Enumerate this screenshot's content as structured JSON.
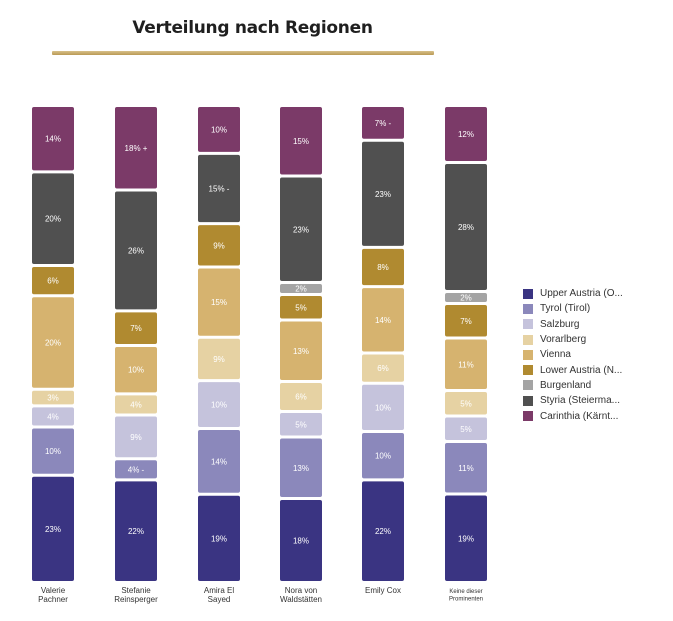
{
  "title": "Verteilung nach Regionen",
  "chart_data": {
    "type": "bar",
    "stacked": true,
    "title": "Verteilung nach Regionen",
    "xlabel": "",
    "ylabel": "",
    "legend_position": "right",
    "categories": [
      "Valerie Pachner",
      "Stefanie Reinsperger",
      "Amira El Sayed",
      "Nora von Waldstätten",
      "Emily Cox",
      "Keine dieser Prominenten"
    ],
    "series": [
      {
        "name": "Upper Austria (O...",
        "color": "#3a3482",
        "values": [
          23,
          22,
          19,
          18,
          22,
          19
        ]
      },
      {
        "name": "Tyrol (Tirol)",
        "color": "#8b88bb",
        "values": [
          10,
          4,
          14,
          13,
          10,
          11
        ]
      },
      {
        "name": "Salzburg",
        "color": "#c5c3dc",
        "values": [
          4,
          9,
          10,
          5,
          10,
          5
        ]
      },
      {
        "name": "Vorarlberg",
        "color": "#e6d2a3",
        "values": [
          3,
          4,
          9,
          6,
          6,
          5
        ]
      },
      {
        "name": "Vienna",
        "color": "#d6b36f",
        "values": [
          20,
          10,
          15,
          13,
          14,
          11
        ]
      },
      {
        "name": "Lower Austria (N...",
        "color": "#b08a30",
        "values": [
          6,
          7,
          9,
          5,
          8,
          7
        ]
      },
      {
        "name": "Burgenland",
        "color": "#a4a4a4",
        "values": [
          0,
          0,
          0,
          2,
          0,
          2
        ]
      },
      {
        "name": "Styria (Steierma...",
        "color": "#505050",
        "values": [
          20,
          26,
          15,
          23,
          23,
          28
        ]
      },
      {
        "name": "Carinthia (Kärnt...",
        "color": "#7b3a68",
        "values": [
          14,
          18,
          10,
          15,
          7,
          12
        ]
      }
    ],
    "data_labels": [
      [
        "23%",
        "10%",
        "4%",
        "3%",
        "20%",
        "6%",
        "",
        "20%",
        "14%"
      ],
      [
        "22%",
        "4% -",
        "9%",
        "4%",
        "10%",
        "7%",
        "",
        "26%",
        "18% +"
      ],
      [
        "19%",
        "14%",
        "10%",
        "9%",
        "15%",
        "9%",
        "",
        "15% -",
        "10%"
      ],
      [
        "18%",
        "13%",
        "5%",
        "6%",
        "13%",
        "5%",
        "2%",
        "23%",
        "15%"
      ],
      [
        "22%",
        "10%",
        "10%",
        "6%",
        "14%",
        "8%",
        "",
        "23%",
        "7% -"
      ],
      [
        "19%",
        "11%",
        "5%",
        "5%",
        "11%",
        "7%",
        "2%",
        "28%",
        "12%"
      ]
    ],
    "category_labels": [
      [
        "Valerie",
        "Pachner"
      ],
      [
        "Stefanie",
        "Reinsperger"
      ],
      [
        "Amira El",
        "Sayed"
      ],
      [
        "Nora von",
        "Waldstätten"
      ],
      [
        "Emily Cox"
      ],
      [
        "Keine dieser",
        "Prominenten"
      ]
    ]
  }
}
